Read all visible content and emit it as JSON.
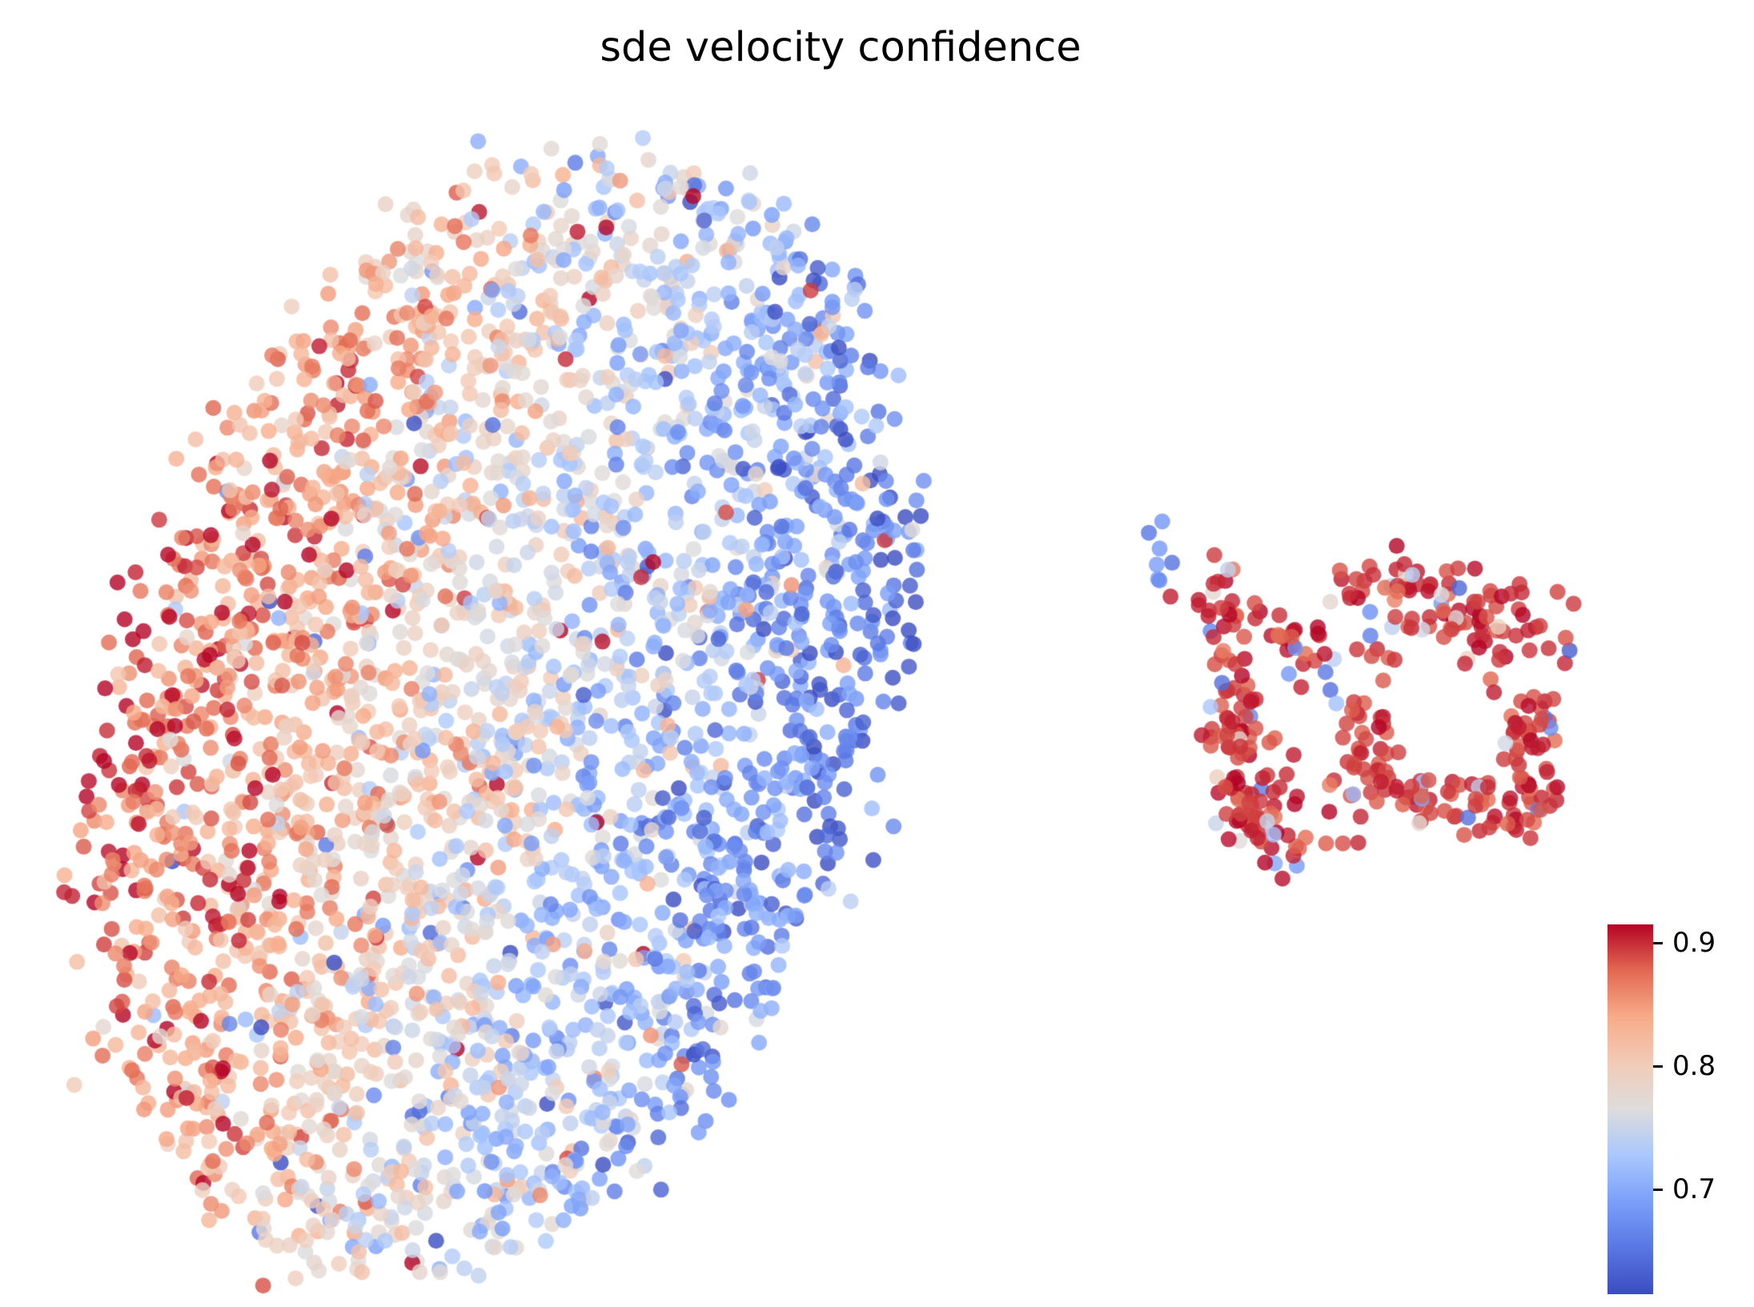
{
  "chart_data": {
    "type": "scatter",
    "title": "sde velocity confidence",
    "xlabel": "",
    "ylabel": "",
    "grid": false,
    "axes_visible": false,
    "legend": "none",
    "background": "#ffffff",
    "colormap": {
      "name": "coolwarm",
      "vmin": 0.615,
      "vmax": 0.915,
      "anchors": [
        {
          "t": 0.0,
          "color": "#3b4cc0"
        },
        {
          "t": 0.125,
          "color": "#5977e3"
        },
        {
          "t": 0.25,
          "color": "#7b9ff9"
        },
        {
          "t": 0.375,
          "color": "#aac7fd"
        },
        {
          "t": 0.5,
          "color": "#dddcdc"
        },
        {
          "t": 0.625,
          "color": "#f2cbb7"
        },
        {
          "t": 0.75,
          "color": "#f7ab89"
        },
        {
          "t": 0.875,
          "color": "#e26952"
        },
        {
          "t": 1.0,
          "color": "#b40426"
        }
      ]
    },
    "colorbar": {
      "orientation": "vertical",
      "ticks": [
        {
          "value": 0.9,
          "label": "0.9"
        },
        {
          "value": 0.8,
          "label": "0.8"
        },
        {
          "value": 0.7,
          "label": "0.7"
        }
      ]
    },
    "point_style": {
      "radius_px": 10,
      "alpha": 0.8
    },
    "clusters": [
      {
        "name": "main-manifold",
        "shape": "ellipse",
        "n_points": 3200,
        "center_frac": [
          0.285,
          0.545
        ],
        "radii_frac": [
          0.215,
          0.435
        ],
        "rotation_deg": 12,
        "edge_jitter_frac": 0.013,
        "values": {
          "model": "gradient-across-short-axis",
          "left_value": 0.885,
          "right_value": 0.652,
          "vertical_delta": 0.015,
          "noise_sd": 0.038,
          "outlier_fraction": 0.12,
          "outlier_sd": 0.09,
          "clamp": [
            0.615,
            0.915
          ]
        }
      },
      {
        "name": "detached-high-confidence-cluster",
        "shape": "blobs",
        "values": {
          "model": "constant-high",
          "base": 0.897,
          "noise_sd": 0.012,
          "pale_fraction": 0.07,
          "pale_range": [
            0.72,
            0.8
          ],
          "blue_range": [
            0.63,
            0.7
          ],
          "clamp": [
            0.615,
            0.915
          ]
        },
        "blobs": [
          {
            "c": [
              0.664,
              0.428
            ],
            "sd": [
              0.005,
              0.013
            ],
            "n": 7,
            "blue_fraction": 0.7
          },
          {
            "c": [
              0.697,
              0.462
            ],
            "sd": [
              0.013,
              0.016
            ],
            "n": 28,
            "blue_fraction": 0.12
          },
          {
            "c": [
              0.705,
              0.545
            ],
            "sd": [
              0.009,
              0.032
            ],
            "n": 48,
            "blue_fraction": 0.05
          },
          {
            "c": [
              0.714,
              0.617
            ],
            "sd": [
              0.012,
              0.022
            ],
            "n": 55,
            "blue_fraction": 0.05
          },
          {
            "c": [
              0.744,
              0.502
            ],
            "sd": [
              0.012,
              0.015
            ],
            "n": 24,
            "blue_fraction": 0.1
          },
          {
            "c": [
              0.779,
              0.562
            ],
            "sd": [
              0.01,
              0.036
            ],
            "n": 46,
            "blue_fraction": 0.05
          },
          {
            "c": [
              0.801,
              0.452
            ],
            "sd": [
              0.023,
              0.016
            ],
            "n": 46,
            "blue_fraction": 0.04
          },
          {
            "c": [
              0.853,
              0.474
            ],
            "sd": [
              0.018,
              0.018
            ],
            "n": 46,
            "blue_fraction": 0.03
          },
          {
            "c": [
              0.872,
              0.558
            ],
            "sd": [
              0.012,
              0.031
            ],
            "n": 42,
            "blue_fraction": 0.03
          },
          {
            "c": [
              0.846,
              0.614
            ],
            "sd": [
              0.022,
              0.014
            ],
            "n": 48,
            "blue_fraction": 0.04
          },
          {
            "c": [
              0.802,
              0.6
            ],
            "sd": [
              0.012,
              0.012
            ],
            "n": 20,
            "blue_fraction": 0.05
          },
          {
            "c": [
              0.736,
              0.655
            ],
            "sd": [
              0.008,
              0.011
            ],
            "n": 10,
            "blue_fraction": 0.25
          }
        ]
      }
    ]
  }
}
